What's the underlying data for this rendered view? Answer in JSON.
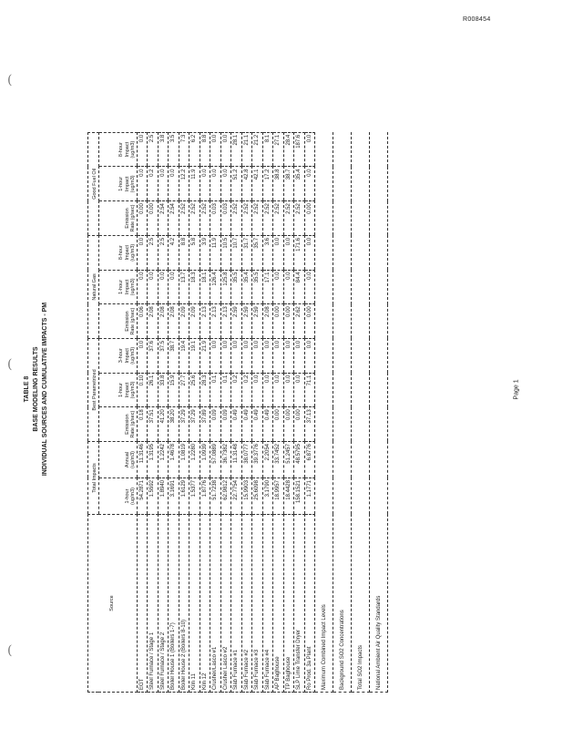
{
  "doc_id": "R008454",
  "page": "Page 1",
  "title": {
    "line1": "TABLE 8",
    "line2": "BASE MODELING RESULTS",
    "line3": "INDIVIDUAL SOURCES AND CUMULATIVE IMPACTS - PM"
  },
  "table": {
    "source_header": "Source",
    "groups": [
      "Total Impacts",
      "Best Parametrized",
      "Natural Gas",
      "Good Fuel Oil"
    ],
    "subheaders": [
      "1-hour (ug/m3)",
      "Annual (ug/m3)",
      "Emission Rate (g/sec)",
      "1-hour Impact (ug/m3)",
      "3-hour Impact (ug/m3)",
      "Emission Rate (g/sec)",
      "1-hour Impact (ug/m3)",
      "8-hour Impact (ug/m3)",
      "Emission Rate (g/sec)",
      "1-hour Impact (ug/m3)",
      "8-hour Impact (ug/m3)"
    ],
    "rows": [
      [
        "EGT",
        "54.2871",
        "11.3146",
        "0.18",
        "0.10",
        "0.0",
        "0.06",
        "0.0",
        "0.0",
        "0.00",
        "0.0",
        "0.0"
      ],
      [
        "Steel Furnace / Stage 1",
        "1.5592",
        "1.3195",
        "37.51",
        "26.1",
        "37.6",
        "2.08",
        "0.0",
        "2.5",
        "0.00",
        "0.2",
        "2.5"
      ],
      [
        "Steel Furnace / Stage 2",
        "1.8940",
        "1.2242",
        "41.20",
        "33.8",
        "37.5",
        "2.08",
        "0.0",
        "2.5",
        "2.54",
        "0.0",
        "3.8"
      ],
      [
        "Boiler House 1 (Boilers 1-7)",
        "3.1691",
        "1.4678",
        "38.20",
        "15.9",
        "38.7",
        "2.08",
        "0.0",
        "4.2",
        "2.54",
        "0.0",
        "3.5"
      ],
      [
        "Boiler House 2 (Boilers 8-10)",
        "1.6129",
        "1.0819",
        "37.29",
        "27.7",
        "19.4",
        "2.09",
        "13.7",
        "8.8",
        "2.52",
        "12.2",
        "7.3"
      ],
      [
        "Kiln 11",
        "1.5377",
        "1.2280",
        "37.29",
        "25.6",
        "19.1",
        "2.09",
        "18.3",
        "5.8",
        "2.52",
        "11.9",
        "6.2"
      ],
      [
        "Kiln 12",
        "1.8776",
        "1.0939",
        "37.89",
        "28.3",
        "21.9",
        "2.13",
        "18.1",
        "3.9",
        "2.52",
        "0.0",
        "8.8"
      ],
      [
        "Crusher/Lasco #1",
        "51.7238",
        "57.0889",
        "0.09",
        "0.1",
        "0.0",
        "2.13",
        "126.4",
        "11.9",
        "0.03",
        "0.0",
        "0.0"
      ],
      [
        "Crusher Lasco #2",
        "62.9812",
        "36.7382",
        "0.09",
        "0.1",
        "0.0",
        "2.13",
        "125.8",
        "10.5",
        "0.03",
        "0.0",
        "0.0"
      ],
      [
        "Slab Furnace #1",
        "22.7754",
        "11.3148",
        "0.49",
        "0.2",
        "0.0",
        "2.59",
        "35.5",
        "10.7",
        "2.52",
        "51.2",
        "28.1"
      ],
      [
        "Slab Furnace #2",
        "15.9903",
        "38.0777",
        "0.49",
        "0.2",
        "0.0",
        "2.59",
        "35.4",
        "31.7",
        "2.52",
        "42.8",
        "21.1"
      ],
      [
        "Slab Furnace #3",
        "25.6098",
        "39.3776",
        "0.49",
        "0.0",
        "0.0",
        "2.59",
        "35.5",
        "35.7",
        "2.52",
        "42.1",
        "21.2"
      ],
      [
        "Slab Furnace #4",
        "3.1790",
        "2.2054",
        "0.49",
        "0.0",
        "0.0",
        "2.08",
        "17.1",
        "3.6",
        "2.52",
        "17.2",
        "8.1"
      ],
      [
        "AP Baghouse",
        "18.9957",
        "33.7452",
        "0.00",
        "0.0",
        "0.0",
        "0.00",
        "0.0",
        "0.0",
        "2.52",
        "38.8",
        "27.1"
      ],
      [
        "TP Baghouse",
        "18.4428",
        "51.2457",
        "0.00",
        "0.0",
        "0.0",
        "0.00",
        "0.0",
        "0.0",
        "2.52",
        "38.7",
        "28.4"
      ],
      [
        "SLP Lime Transfer Dryer",
        "158.1521",
        "48.5795",
        "0.00",
        "0.0",
        "0.0",
        "2.62",
        "84.4",
        "171.6",
        "2.52",
        "35.4",
        "187.6"
      ],
      [
        "Ro Prod. 3a Plant",
        "1.1771",
        "6.8776",
        "37.13",
        "71.1",
        "0.0",
        "0.00",
        "0.0",
        "0.0",
        "0.00",
        "0.0",
        "0.0"
      ]
    ],
    "footer": [
      "Maximum Combined Impact Levels",
      "Background SO2 Concentrations",
      "Total SO2 Impacts",
      "National Ambient Air Quality Standards"
    ]
  }
}
